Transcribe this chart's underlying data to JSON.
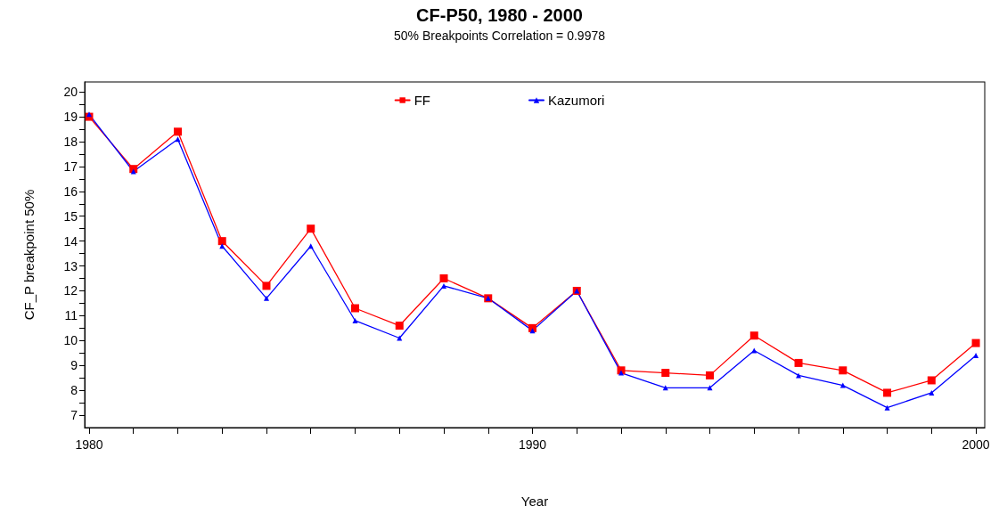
{
  "chart_data": {
    "type": "line",
    "title": "CF-P50, 1980 - 2000",
    "subtitle": "50% Breakpoints Correlation = 0.9978",
    "xlabel": "Year",
    "ylabel": "CF_P breakpoint 50%",
    "x": [
      1980,
      1981,
      1982,
      1983,
      1984,
      1985,
      1986,
      1987,
      1988,
      1989,
      1990,
      1991,
      1992,
      1993,
      1994,
      1995,
      1996,
      1997,
      1998,
      1999,
      2000
    ],
    "series": [
      {
        "name": "FF",
        "color": "#ff0000",
        "marker": "square",
        "values": [
          19.0,
          16.9,
          18.4,
          14.0,
          12.2,
          14.5,
          11.3,
          10.6,
          12.5,
          11.7,
          10.5,
          12.0,
          8.8,
          8.7,
          8.6,
          10.2,
          9.1,
          8.8,
          7.9,
          8.4,
          9.9
        ]
      },
      {
        "name": "Kazumori",
        "color": "#0000ff",
        "marker": "triangle",
        "values": [
          19.1,
          16.8,
          18.1,
          13.8,
          11.7,
          13.8,
          10.8,
          10.1,
          12.2,
          11.7,
          10.4,
          12.0,
          8.7,
          8.1,
          8.1,
          9.6,
          8.6,
          8.2,
          7.3,
          7.9,
          9.4
        ]
      }
    ],
    "xlim": [
      1979.9,
      2000.2
    ],
    "xticks": [
      1980,
      {
        "value": 1981,
        "label": null
      },
      {
        "value": 1982,
        "label": null
      },
      {
        "value": 1983,
        "label": null
      },
      {
        "value": 1984,
        "label": null
      },
      {
        "value": 1985,
        "label": null
      },
      {
        "value": 1986,
        "label": null
      },
      {
        "value": 1987,
        "label": null
      },
      {
        "value": 1988,
        "label": null
      },
      {
        "value": 1989,
        "label": null
      },
      1990,
      {
        "value": 1991,
        "label": null
      },
      {
        "value": 1992,
        "label": null
      },
      {
        "value": 1993,
        "label": null
      },
      {
        "value": 1994,
        "label": null
      },
      {
        "value": 1995,
        "label": null
      },
      {
        "value": 1996,
        "label": null
      },
      {
        "value": 1997,
        "label": null
      },
      {
        "value": 1998,
        "label": null
      },
      {
        "value": 1999,
        "label": null
      },
      2000
    ],
    "ylim": [
      6.5,
      20.4
    ],
    "yticks": [
      7,
      {
        "value": 7.5,
        "label": null
      },
      8,
      {
        "value": 8.5,
        "label": null
      },
      9,
      {
        "value": 9.5,
        "label": null
      },
      10,
      {
        "value": 10.5,
        "label": null
      },
      11,
      {
        "value": 11.5,
        "label": null
      },
      12,
      {
        "value": 12.5,
        "label": null
      },
      13,
      {
        "value": 13.5,
        "label": null
      },
      14,
      {
        "value": 14.5,
        "label": null
      },
      15,
      {
        "value": 15.5,
        "label": null
      },
      16,
      {
        "value": 16.5,
        "label": null
      },
      17,
      {
        "value": 17.5,
        "label": null
      },
      18,
      {
        "value": 18.5,
        "label": null
      },
      19,
      {
        "value": 19.5,
        "label": null
      },
      20
    ],
    "grid": false,
    "legend": "top",
    "line_style": "solid"
  }
}
